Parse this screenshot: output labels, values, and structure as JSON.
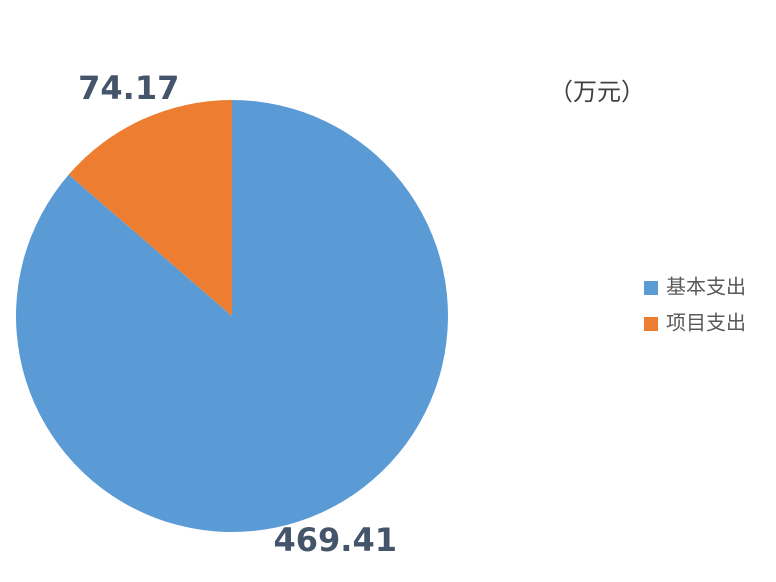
{
  "chart_data": {
    "type": "pie",
    "unit": "（万元）",
    "categories": [
      "基本支出",
      "项目支出"
    ],
    "values": [
      469.41,
      74.17
    ],
    "colors": [
      "#5b9bd5",
      "#ed7d31"
    ],
    "legend": "right"
  }
}
